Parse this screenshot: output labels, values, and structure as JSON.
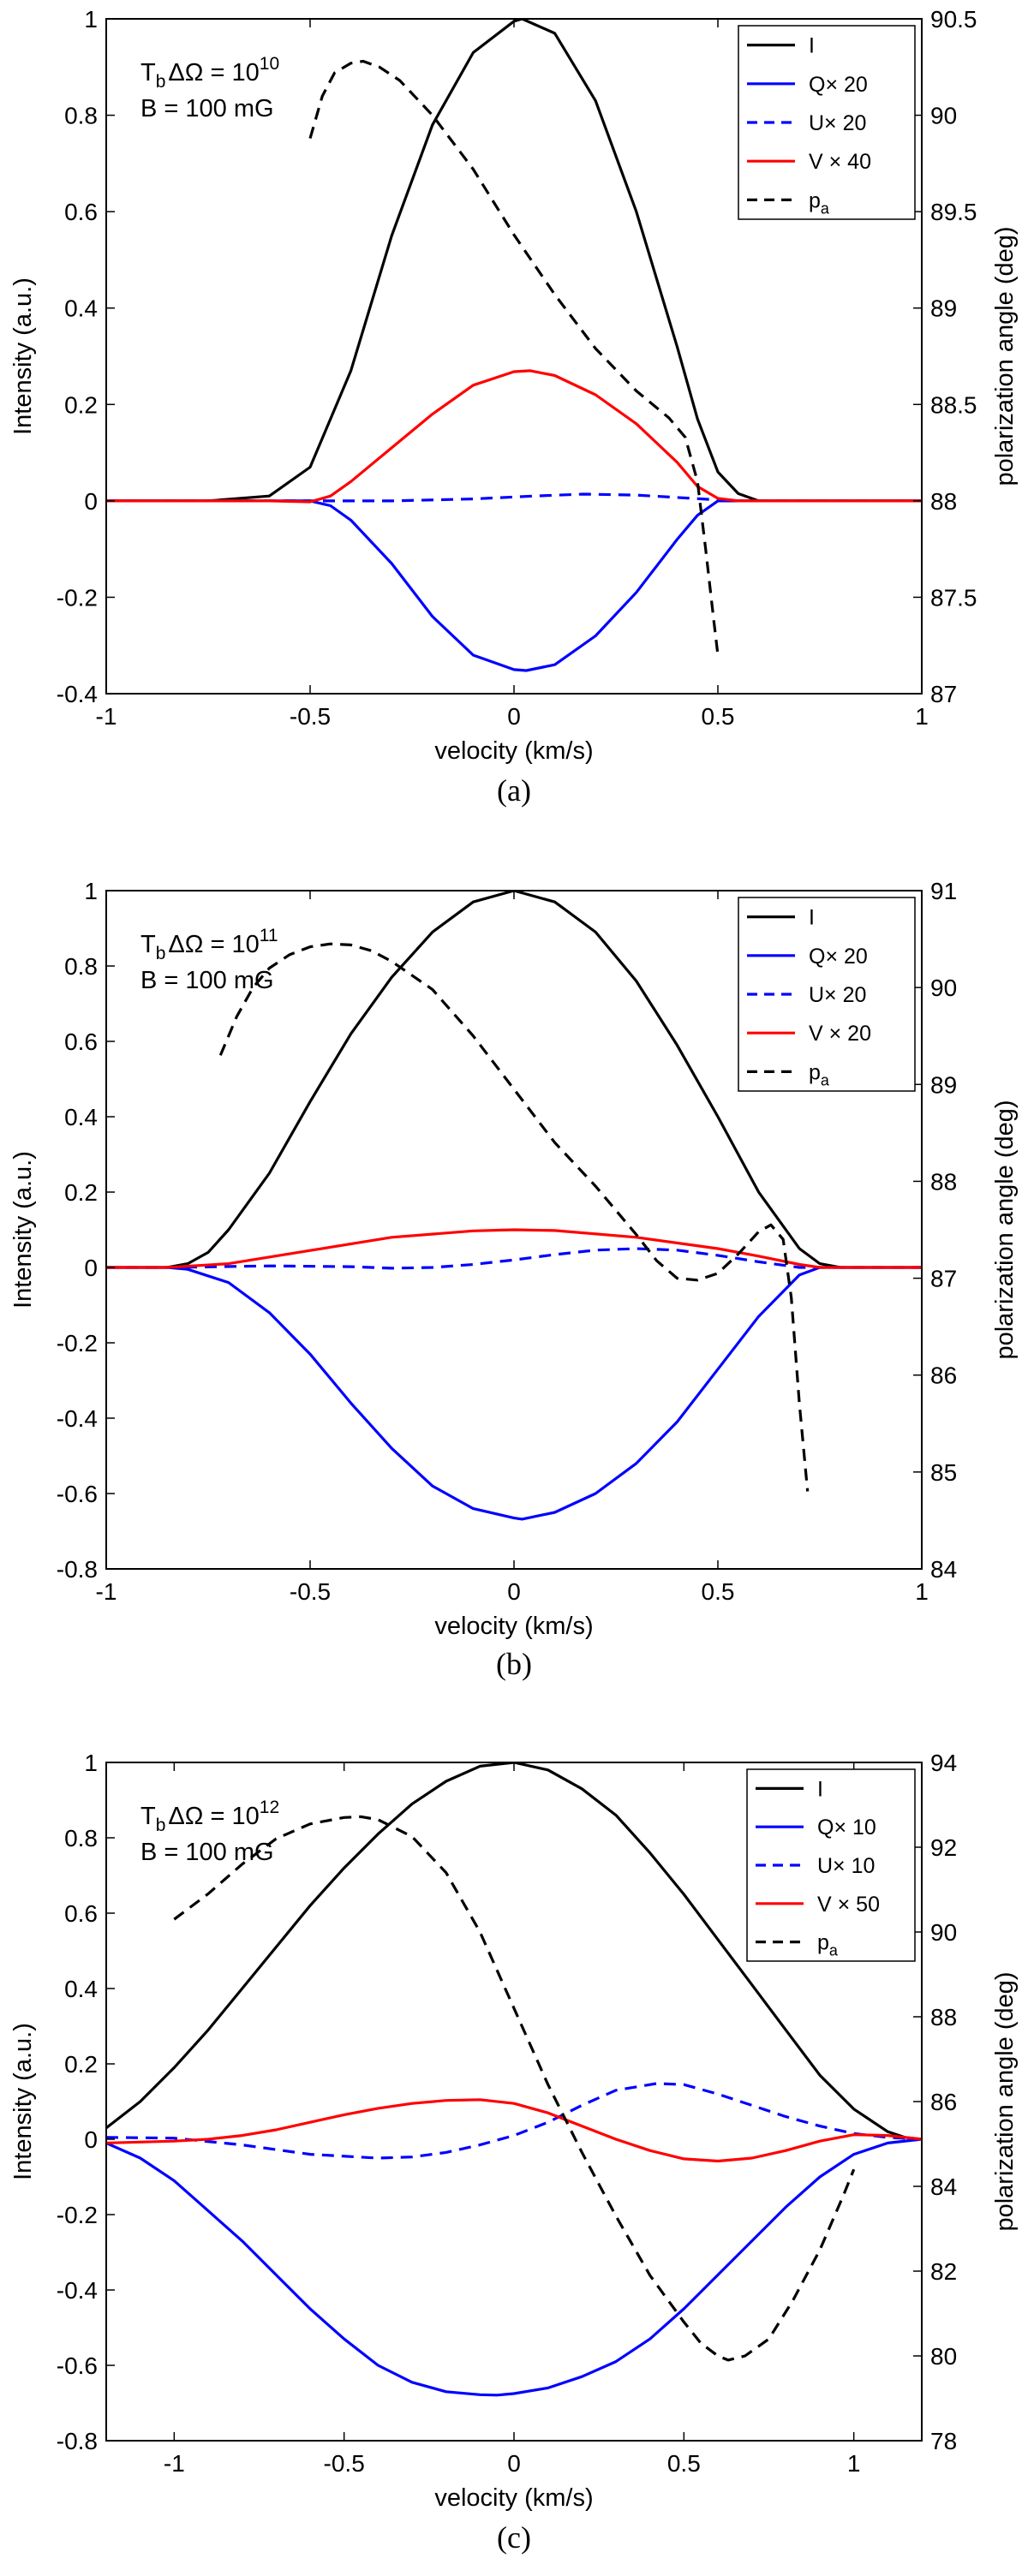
{
  "colors": {
    "I": "#000000",
    "Q": "#0000ff",
    "U": "#0000ff",
    "V": "#ff0000",
    "pa": "#000000"
  },
  "chart_data": [
    {
      "type": "line",
      "panel": "a",
      "caption": "(a)",
      "xlabel": "velocity (km/s)",
      "ylabel": "Intensity (a.u.)",
      "y2label": "polarization angle (deg)",
      "xlim": [
        -1,
        1
      ],
      "ylim": [
        -0.4,
        1
      ],
      "y2lim": [
        87,
        90.5
      ],
      "xticks": [
        -1,
        -0.5,
        0,
        0.5,
        1
      ],
      "xtick_labels": [
        "-1",
        "-0.5",
        "0",
        "0.5",
        "1"
      ],
      "yticks": [
        -0.4,
        -0.2,
        0,
        0.2,
        0.4,
        0.6,
        0.8,
        1
      ],
      "ytick_labels": [
        "-0.4",
        "-0.2",
        "0",
        "0.2",
        "0.4",
        "0.6",
        "0.8",
        "1"
      ],
      "y2ticks": [
        87,
        87.5,
        88,
        88.5,
        89,
        89.5,
        90,
        90.5
      ],
      "y2tick_labels": [
        "87",
        "87.5",
        "88",
        "88.5",
        "89",
        "89.5",
        "90",
        "90.5"
      ],
      "annotation": {
        "line1_prefix": "T",
        "line1_sub": "b",
        "line1_mid": "ΔΩ = 10",
        "line1_sup": "10",
        "line2": "B = 100 mG"
      },
      "legend_position": "top-right",
      "series": [
        {
          "name": "I",
          "label": "I",
          "sub": "",
          "style": "solid",
          "axis": "left",
          "color": "#000000",
          "x": [
            -1,
            -0.75,
            -0.6,
            -0.5,
            -0.4,
            -0.3,
            -0.2,
            -0.1,
            0,
            0.02,
            0.1,
            0.2,
            0.3,
            0.4,
            0.45,
            0.5,
            0.55,
            0.6,
            0.75,
            1
          ],
          "y": [
            0,
            0,
            0.01,
            0.07,
            0.27,
            0.55,
            0.78,
            0.93,
            0.995,
            1.0,
            0.97,
            0.83,
            0.6,
            0.32,
            0.17,
            0.06,
            0.015,
            0,
            0,
            0
          ]
        },
        {
          "name": "Q",
          "label": "Q× 20",
          "sub": "",
          "style": "solid",
          "axis": "left",
          "color": "#0000ff",
          "x": [
            -1,
            -0.55,
            -0.5,
            -0.45,
            -0.4,
            -0.3,
            -0.2,
            -0.1,
            0,
            0.03,
            0.1,
            0.2,
            0.3,
            0.4,
            0.45,
            0.5,
            0.55,
            1
          ],
          "y": [
            0,
            0,
            0,
            -0.01,
            -0.04,
            -0.13,
            -0.24,
            -0.32,
            -0.35,
            -0.352,
            -0.34,
            -0.28,
            -0.19,
            -0.08,
            -0.03,
            0,
            0,
            0
          ]
        },
        {
          "name": "U",
          "label": "U× 20",
          "sub": "",
          "style": "dashed",
          "axis": "left",
          "color": "#0000ff",
          "x": [
            -1,
            -0.5,
            -0.3,
            -0.1,
            0.05,
            0.17,
            0.3,
            0.4,
            0.5,
            0.55,
            1
          ],
          "y": [
            0,
            0,
            0.0,
            0.004,
            0.01,
            0.014,
            0.012,
            0.007,
            0.002,
            0,
            0
          ]
        },
        {
          "name": "V",
          "label": "V × 40",
          "sub": "",
          "style": "solid",
          "axis": "left",
          "color": "#ff0000",
          "x": [
            -1,
            -0.6,
            -0.5,
            -0.45,
            -0.4,
            -0.3,
            -0.2,
            -0.1,
            0,
            0.04,
            0.1,
            0.2,
            0.3,
            0.4,
            0.45,
            0.5,
            0.55,
            1
          ],
          "y": [
            0,
            0,
            -0.002,
            0.01,
            0.04,
            0.11,
            0.18,
            0.24,
            0.268,
            0.27,
            0.26,
            0.22,
            0.16,
            0.08,
            0.03,
            0.005,
            0,
            0
          ]
        },
        {
          "name": "pa",
          "label": "p",
          "sub": "a",
          "style": "dashed",
          "axis": "right",
          "color": "#000000",
          "x": [
            -0.5,
            -0.47,
            -0.44,
            -0.4,
            -0.37,
            -0.33,
            -0.28,
            -0.2,
            -0.1,
            0,
            0.1,
            0.2,
            0.3,
            0.38,
            0.42,
            0.45,
            0.47,
            0.49,
            0.5
          ],
          "y": [
            89.88,
            90.1,
            90.22,
            90.27,
            90.28,
            90.25,
            90.18,
            90.0,
            89.72,
            89.38,
            89.07,
            88.79,
            88.57,
            88.43,
            88.33,
            88.1,
            87.75,
            87.38,
            87.2
          ]
        }
      ]
    },
    {
      "type": "line",
      "panel": "b",
      "caption": "(b)",
      "xlabel": "velocity (km/s)",
      "ylabel": "Intensity (a.u.)",
      "y2label": "polarization angle (deg)",
      "xlim": [
        -1,
        1
      ],
      "ylim": [
        -0.8,
        1
      ],
      "y2lim": [
        84,
        91
      ],
      "xticks": [
        -1,
        -0.5,
        0,
        0.5,
        1
      ],
      "xtick_labels": [
        "-1",
        "-0.5",
        "0",
        "0.5",
        "1"
      ],
      "yticks": [
        -0.8,
        -0.6,
        -0.4,
        -0.2,
        0,
        0.2,
        0.4,
        0.6,
        0.8,
        1
      ],
      "ytick_labels": [
        "-0.8",
        "-0.6",
        "-0.4",
        "-0.2",
        "0",
        "0.2",
        "0.4",
        "0.6",
        "0.8",
        "1"
      ],
      "y2ticks": [
        84,
        85,
        86,
        87,
        88,
        89,
        90,
        91
      ],
      "y2tick_labels": [
        "84",
        "85",
        "86",
        "87",
        "88",
        "89",
        "90",
        "91"
      ],
      "annotation": {
        "line1_prefix": "T",
        "line1_sub": "b",
        "line1_mid": "ΔΩ = 10",
        "line1_sup": "11",
        "line2": "B = 100 mG"
      },
      "legend_position": "top-right",
      "series": [
        {
          "name": "I",
          "label": "I",
          "sub": "",
          "style": "solid",
          "axis": "left",
          "color": "#000000",
          "x": [
            -1,
            -0.85,
            -0.8,
            -0.75,
            -0.7,
            -0.6,
            -0.5,
            -0.4,
            -0.3,
            -0.2,
            -0.1,
            0,
            0.1,
            0.2,
            0.3,
            0.4,
            0.5,
            0.6,
            0.7,
            0.75,
            0.8,
            0.85,
            1
          ],
          "y": [
            0,
            0,
            0.01,
            0.04,
            0.1,
            0.25,
            0.44,
            0.62,
            0.77,
            0.89,
            0.97,
            1.0,
            0.97,
            0.89,
            0.76,
            0.59,
            0.4,
            0.2,
            0.05,
            0.01,
            0,
            0,
            0
          ]
        },
        {
          "name": "Q",
          "label": "Q× 20",
          "sub": "",
          "style": "solid",
          "axis": "left",
          "color": "#0000ff",
          "x": [
            -1,
            -0.85,
            -0.8,
            -0.7,
            -0.6,
            -0.5,
            -0.4,
            -0.3,
            -0.2,
            -0.1,
            0,
            0.02,
            0.1,
            0.2,
            0.3,
            0.4,
            0.5,
            0.6,
            0.7,
            0.75,
            1
          ],
          "y": [
            0,
            0,
            -0.005,
            -0.04,
            -0.12,
            -0.23,
            -0.36,
            -0.48,
            -0.58,
            -0.64,
            -0.665,
            -0.668,
            -0.65,
            -0.6,
            -0.52,
            -0.41,
            -0.27,
            -0.13,
            -0.02,
            0,
            0
          ]
        },
        {
          "name": "U",
          "label": "U× 20",
          "sub": "",
          "style": "dashed",
          "axis": "left",
          "color": "#0000ff",
          "x": [
            -1,
            -0.85,
            -0.6,
            -0.4,
            -0.3,
            -0.2,
            -0.1,
            0,
            0.1,
            0.2,
            0.3,
            0.4,
            0.5,
            0.6,
            0.7,
            1
          ],
          "y": [
            0,
            0,
            0.004,
            0.002,
            -0.002,
            0,
            0.008,
            0.02,
            0.034,
            0.046,
            0.05,
            0.046,
            0.032,
            0.015,
            0,
            0
          ]
        },
        {
          "name": "V",
          "label": "V × 20",
          "sub": "",
          "style": "solid",
          "axis": "left",
          "color": "#ff0000",
          "x": [
            -1,
            -0.85,
            -0.7,
            -0.5,
            -0.3,
            -0.1,
            0,
            0.1,
            0.3,
            0.5,
            0.6,
            0.7,
            0.75,
            1
          ],
          "y": [
            0,
            0,
            0.01,
            0.045,
            0.08,
            0.097,
            0.1,
            0.098,
            0.08,
            0.05,
            0.03,
            0.008,
            0,
            0
          ]
        },
        {
          "name": "pa",
          "label": "p",
          "sub": "a",
          "style": "dashed",
          "axis": "right",
          "color": "#000000",
          "x": [
            -0.72,
            -0.68,
            -0.64,
            -0.6,
            -0.55,
            -0.5,
            -0.45,
            -0.4,
            -0.35,
            -0.3,
            -0.2,
            -0.1,
            0,
            0.1,
            0.2,
            0.3,
            0.35,
            0.4,
            0.45,
            0.5,
            0.55,
            0.6,
            0.63,
            0.66,
            0.68,
            0.7,
            0.72
          ],
          "y": [
            89.3,
            89.7,
            90.0,
            90.2,
            90.34,
            90.42,
            90.45,
            90.44,
            90.38,
            90.27,
            89.98,
            89.5,
            88.95,
            88.4,
            87.95,
            87.45,
            87.18,
            87.0,
            86.98,
            87.05,
            87.25,
            87.48,
            87.55,
            87.4,
            86.8,
            85.7,
            84.8
          ]
        }
      ]
    },
    {
      "type": "line",
      "panel": "c",
      "caption": "(c)",
      "xlabel": "velocity (km/s)",
      "ylabel": "Intensity (a.u.)",
      "y2label": "polarization angle (deg)",
      "xlim": [
        -1.2,
        1.2
      ],
      "ylim": [
        -0.8,
        1
      ],
      "y2lim": [
        78,
        94
      ],
      "xticks": [
        -1,
        -0.5,
        0,
        0.5,
        1
      ],
      "xtick_labels": [
        "-1",
        "-0.5",
        "0",
        "0.5",
        "1"
      ],
      "yticks": [
        -0.8,
        -0.6,
        -0.4,
        -0.2,
        0,
        0.2,
        0.4,
        0.6,
        0.8,
        1
      ],
      "ytick_labels": [
        "-0.8",
        "-0.6",
        "-0.4",
        "-0.2",
        "0",
        "0.2",
        "0.4",
        "0.6",
        "0.8",
        "1"
      ],
      "y2ticks": [
        78,
        80,
        82,
        84,
        86,
        88,
        90,
        92,
        94
      ],
      "y2tick_labels": [
        "78",
        "80",
        "82",
        "84",
        "86",
        "88",
        "90",
        "92",
        "94"
      ],
      "annotation": {
        "line1_prefix": "T",
        "line1_sub": "b",
        "line1_mid": "ΔΩ = 10",
        "line1_sup": "12",
        "line2": "B = 100 mG"
      },
      "legend_position": "top-right",
      "series": [
        {
          "name": "I",
          "label": "I",
          "sub": "",
          "style": "solid",
          "axis": "left",
          "color": "#000000",
          "x": [
            -1.2,
            -1.1,
            -1.0,
            -0.9,
            -0.8,
            -0.7,
            -0.6,
            -0.5,
            -0.4,
            -0.3,
            -0.2,
            -0.1,
            0,
            0.1,
            0.2,
            0.3,
            0.4,
            0.5,
            0.6,
            0.7,
            0.8,
            0.9,
            1.0,
            1.1,
            1.15,
            1.2
          ],
          "y": [
            0.03,
            0.1,
            0.19,
            0.29,
            0.4,
            0.51,
            0.62,
            0.72,
            0.81,
            0.89,
            0.95,
            0.99,
            1.0,
            0.98,
            0.93,
            0.86,
            0.76,
            0.65,
            0.53,
            0.41,
            0.29,
            0.17,
            0.08,
            0.02,
            0.005,
            0
          ]
        },
        {
          "name": "Q",
          "label": "Q× 10",
          "sub": "",
          "style": "solid",
          "axis": "left",
          "color": "#0000ff",
          "x": [
            -1.2,
            -1.1,
            -1.0,
            -0.9,
            -0.8,
            -0.7,
            -0.6,
            -0.5,
            -0.4,
            -0.3,
            -0.2,
            -0.1,
            -0.05,
            0,
            0.1,
            0.2,
            0.3,
            0.4,
            0.5,
            0.6,
            0.7,
            0.8,
            0.9,
            1.0,
            1.1,
            1.2
          ],
          "y": [
            -0.01,
            -0.05,
            -0.11,
            -0.19,
            -0.27,
            -0.36,
            -0.45,
            -0.53,
            -0.6,
            -0.645,
            -0.67,
            -0.678,
            -0.679,
            -0.675,
            -0.66,
            -0.63,
            -0.59,
            -0.53,
            -0.45,
            -0.36,
            -0.27,
            -0.18,
            -0.1,
            -0.04,
            -0.01,
            0
          ]
        },
        {
          "name": "U",
          "label": "U× 10",
          "sub": "",
          "style": "dashed",
          "axis": "left",
          "color": "#0000ff",
          "x": [
            -1.2,
            -1.0,
            -0.8,
            -0.6,
            -0.4,
            -0.3,
            -0.2,
            -0.1,
            0,
            0.1,
            0.2,
            0.3,
            0.42,
            0.5,
            0.6,
            0.7,
            0.8,
            0.9,
            1.0,
            1.1,
            1.2
          ],
          "y": [
            0.005,
            0.003,
            -0.015,
            -0.04,
            -0.05,
            -0.047,
            -0.035,
            -0.015,
            0.01,
            0.045,
            0.09,
            0.13,
            0.148,
            0.145,
            0.12,
            0.09,
            0.06,
            0.035,
            0.015,
            0.005,
            0
          ]
        },
        {
          "name": "V",
          "label": "V × 50",
          "sub": "",
          "style": "solid",
          "axis": "left",
          "color": "#ff0000",
          "x": [
            -1.2,
            -1.0,
            -0.9,
            -0.8,
            -0.7,
            -0.6,
            -0.5,
            -0.4,
            -0.3,
            -0.2,
            -0.1,
            0,
            0.1,
            0.2,
            0.3,
            0.4,
            0.5,
            0.6,
            0.7,
            0.8,
            0.9,
            1.0,
            1.1,
            1.2
          ],
          "y": [
            -0.01,
            -0.005,
            0.0,
            0.01,
            0.025,
            0.045,
            0.065,
            0.082,
            0.095,
            0.103,
            0.105,
            0.095,
            0.07,
            0.035,
            0.0,
            -0.03,
            -0.052,
            -0.058,
            -0.05,
            -0.03,
            -0.005,
            0.012,
            0.01,
            0
          ]
        },
        {
          "name": "pa",
          "label": "p",
          "sub": "a",
          "style": "dashed",
          "axis": "right",
          "color": "#000000",
          "x": [
            -1.0,
            -0.9,
            -0.8,
            -0.7,
            -0.6,
            -0.5,
            -0.45,
            -0.4,
            -0.3,
            -0.2,
            -0.1,
            0,
            0.1,
            0.2,
            0.3,
            0.4,
            0.5,
            0.55,
            0.6,
            0.63,
            0.68,
            0.75,
            0.82,
            0.9,
            0.97,
            1.0
          ],
          "y": [
            90.3,
            90.9,
            91.6,
            92.2,
            92.55,
            92.7,
            92.72,
            92.65,
            92.25,
            91.4,
            90.0,
            88.2,
            86.4,
            84.8,
            83.3,
            81.9,
            80.8,
            80.3,
            80.0,
            79.9,
            80.0,
            80.4,
            81.3,
            82.5,
            83.8,
            84.4
          ]
        }
      ]
    }
  ]
}
